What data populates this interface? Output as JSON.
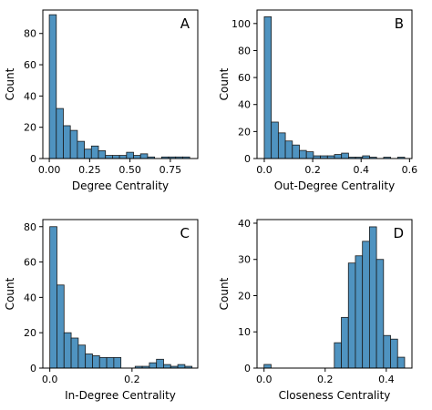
{
  "colors": {
    "bar_fill": "#4f93c0",
    "bar_edge": "#1a1a1a",
    "axis": "#000000"
  },
  "chart_data": [
    {
      "type": "bar",
      "subtype": "histogram",
      "panel": "A",
      "xlabel": "Degree Centrality",
      "ylabel": "Count",
      "xlim": [
        -0.04,
        0.92
      ],
      "ylim": [
        0,
        95
      ],
      "xticks": [
        0.0,
        0.25,
        0.5,
        0.75
      ],
      "xtick_labels": [
        "0.00",
        "0.25",
        "0.50",
        "0.75"
      ],
      "yticks": [
        0,
        20,
        40,
        60,
        80
      ],
      "ytick_labels": [
        "0",
        "20",
        "40",
        "60",
        "80"
      ],
      "bin_edges": [
        0.0,
        0.0435,
        0.087,
        0.1305,
        0.174,
        0.2175,
        0.261,
        0.3045,
        0.348,
        0.3915,
        0.435,
        0.4785,
        0.522,
        0.5655,
        0.609,
        0.6525,
        0.696,
        0.7395,
        0.783,
        0.8265,
        0.87
      ],
      "counts": [
        92,
        32,
        21,
        18,
        11,
        6,
        8,
        5,
        2,
        2,
        2,
        4,
        2,
        3,
        1,
        0,
        1,
        1,
        1,
        1
      ],
      "grid": false,
      "legend": null
    },
    {
      "type": "bar",
      "subtype": "histogram",
      "panel": "B",
      "xlabel": "Out-Degree Centrality",
      "ylabel": "Count",
      "xlim": [
        -0.03,
        0.61
      ],
      "ylim": [
        0,
        110
      ],
      "xticks": [
        0.0,
        0.2,
        0.4,
        0.6
      ],
      "xtick_labels": [
        "0.0",
        "0.2",
        "0.4",
        "0.6"
      ],
      "yticks": [
        0,
        20,
        40,
        60,
        80,
        100
      ],
      "ytick_labels": [
        "0",
        "20",
        "40",
        "60",
        "80",
        "100"
      ],
      "bin_edges": [
        0.0,
        0.029,
        0.058,
        0.087,
        0.116,
        0.145,
        0.174,
        0.203,
        0.232,
        0.261,
        0.29,
        0.319,
        0.348,
        0.377,
        0.406,
        0.435,
        0.464,
        0.493,
        0.522,
        0.551,
        0.58
      ],
      "counts": [
        105,
        27,
        19,
        13,
        10,
        6,
        5,
        2,
        2,
        2,
        3,
        4,
        1,
        1,
        2,
        1,
        0,
        1,
        0,
        1
      ],
      "grid": false,
      "legend": null
    },
    {
      "type": "bar",
      "subtype": "histogram",
      "panel": "C",
      "xlabel": "In-Degree Centrality",
      "ylabel": "Count",
      "xlim": [
        -0.017,
        0.36
      ],
      "ylim": [
        0,
        84
      ],
      "xticks": [
        0.0,
        0.2
      ],
      "xtick_labels": [
        "0.0",
        "0.2"
      ],
      "yticks": [
        0,
        20,
        40,
        60,
        80
      ],
      "ytick_labels": [
        "0",
        "20",
        "40",
        "60",
        "80"
      ],
      "bin_edges": [
        0.0,
        0.0173,
        0.0346,
        0.0519,
        0.0692,
        0.0865,
        0.1038,
        0.1211,
        0.1384,
        0.1557,
        0.173,
        0.1903,
        0.2076,
        0.2249,
        0.2422,
        0.2595,
        0.2768,
        0.2941,
        0.3114,
        0.3287,
        0.346
      ],
      "counts": [
        80,
        47,
        20,
        17,
        13,
        8,
        7,
        6,
        6,
        6,
        0,
        0,
        1,
        1,
        3,
        5,
        2,
        1,
        2,
        1
      ],
      "grid": false,
      "legend": null
    },
    {
      "type": "bar",
      "subtype": "histogram",
      "panel": "D",
      "xlabel": "Closeness Centrality",
      "ylabel": "Count",
      "xlim": [
        -0.023,
        0.484
      ],
      "ylim": [
        0,
        41
      ],
      "xticks": [
        0.0,
        0.2,
        0.4
      ],
      "xtick_labels": [
        "0.0",
        "0.2",
        "0.4"
      ],
      "yticks": [
        0,
        10,
        20,
        30,
        40
      ],
      "ytick_labels": [
        "0",
        "10",
        "20",
        "30",
        "40"
      ],
      "bin_edges": [
        0.0,
        0.023,
        0.046,
        0.069,
        0.092,
        0.115,
        0.138,
        0.161,
        0.184,
        0.207,
        0.23,
        0.253,
        0.276,
        0.299,
        0.322,
        0.345,
        0.368,
        0.391,
        0.414,
        0.437,
        0.46
      ],
      "counts": [
        1,
        0,
        0,
        0,
        0,
        0,
        0,
        0,
        0,
        0,
        7,
        14,
        29,
        31,
        35,
        39,
        30,
        9,
        8,
        3
      ],
      "grid": false,
      "legend": null
    }
  ]
}
